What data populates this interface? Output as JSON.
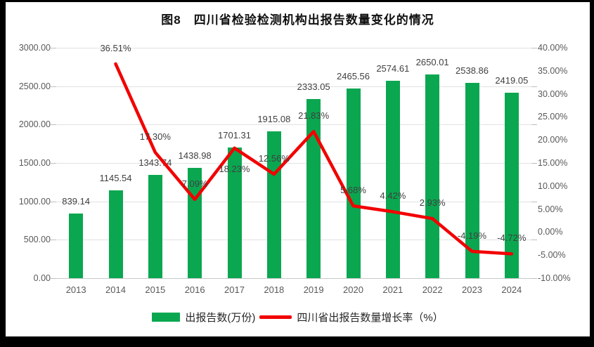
{
  "title": "图8　四川省检验检测机构出报告数量变化的情况",
  "colors": {
    "bar": "#0AA750",
    "line": "#F20000",
    "grid": "#E2E2E2",
    "axis_line": "#C9C9C9",
    "tick": "#BFBFBF",
    "axis_text": "#595959",
    "data_label": "#404040",
    "frame": "#000000"
  },
  "legend": {
    "items": [
      {
        "label": "出报告数(万份)",
        "marker": "bar"
      },
      {
        "label": "四川省出报告数量增长率（%）",
        "marker": "line"
      }
    ]
  },
  "chart_data": {
    "type": "bar",
    "subtype": "combo-bar-line",
    "title": "图8　四川省检验检测机构出报告数量变化的情况",
    "categories": [
      "2013",
      "2014",
      "2015",
      "2016",
      "2017",
      "2018",
      "2019",
      "2020",
      "2021",
      "2022",
      "2023",
      "2024"
    ],
    "series": [
      {
        "name": "出报告数(万份)",
        "type": "bar",
        "axis": "left",
        "values": [
          839.14,
          1145.54,
          1343.74,
          1438.98,
          1701.31,
          1915.08,
          2333.05,
          2465.56,
          2574.61,
          2650.01,
          2538.86,
          2419.05
        ],
        "labels": [
          "839.14",
          "1145.54",
          "1343.74",
          "1438.98",
          "1701.31",
          "1915.08",
          "2333.05",
          "2465.56",
          "2574.61",
          "2650.01",
          "2538.86",
          "2419.05"
        ]
      },
      {
        "name": "四川省出报告数量增长率（%）",
        "type": "line",
        "axis": "right",
        "values": [
          null,
          36.51,
          17.3,
          7.09,
          18.23,
          12.56,
          21.83,
          5.68,
          4.42,
          2.93,
          -4.19,
          -4.72
        ],
        "labels": [
          null,
          "36.51%",
          "17.30%",
          "7.09%",
          "18.23%",
          "12.56%",
          "21.83%",
          "5.68%",
          "4.42%",
          "2.93%",
          "-4.19%",
          "-4.72%"
        ]
      }
    ],
    "left_axis": {
      "min": 0,
      "max": 3000,
      "step": 500,
      "ticks": [
        "3000.00",
        "2500.00",
        "2000.00",
        "1500.00",
        "1000.00",
        "500.00",
        "0.00"
      ]
    },
    "right_axis": {
      "min": -10,
      "max": 40,
      "step": 5,
      "ticks": [
        "40.00%",
        "35.00%",
        "30.00%",
        "25.00%",
        "20.00%",
        "15.00%",
        "10.00%",
        "5.00%",
        "0.00%",
        "-5.00%",
        "-10.00%"
      ]
    },
    "grid": true,
    "legend_position": "bottom"
  }
}
